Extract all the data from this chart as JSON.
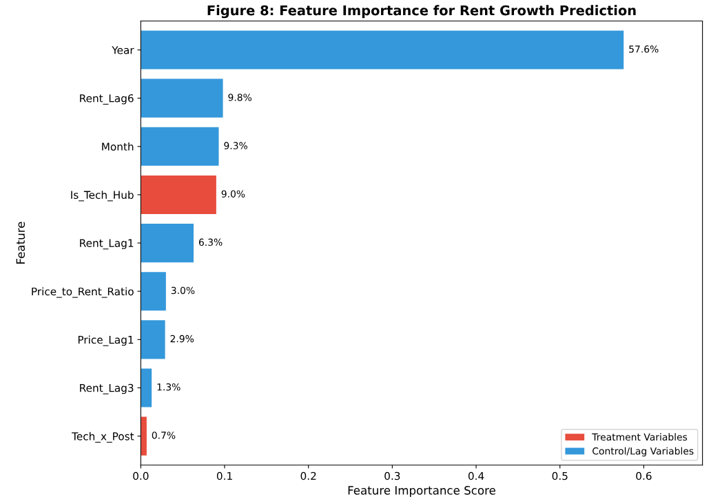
{
  "chart_data": {
    "type": "bar",
    "orientation": "horizontal",
    "title": "Figure 8: Feature Importance for Rent Growth Prediction",
    "xlabel": "Feature Importance Score",
    "ylabel": "Feature",
    "categories": [
      "Year",
      "Rent_Lag6",
      "Month",
      "Is_Tech_Hub",
      "Rent_Lag1",
      "Price_to_Rent_Ratio",
      "Price_Lag1",
      "Rent_Lag3",
      "Tech_x_Post"
    ],
    "series": [
      {
        "name": "Treatment Variables",
        "color": "#e74c3c",
        "values": [
          null,
          null,
          null,
          0.09,
          null,
          null,
          null,
          null,
          0.007
        ],
        "value_labels": [
          null,
          null,
          null,
          "9.0%",
          null,
          null,
          null,
          null,
          "0.7%"
        ]
      },
      {
        "name": "Control/Lag Variables",
        "color": "#3498db",
        "values": [
          0.576,
          0.098,
          0.093,
          null,
          0.063,
          0.03,
          0.029,
          0.013,
          null
        ],
        "value_labels": [
          "57.6%",
          "9.8%",
          "9.3%",
          null,
          "6.3%",
          "3.0%",
          "2.9%",
          "1.3%",
          null
        ]
      }
    ],
    "xlim": [
      0,
      0.67
    ],
    "xticks": [
      {
        "value": 0,
        "label": "0.0"
      },
      0.1,
      0.2,
      0.3,
      0.4,
      0.5,
      0.6
    ],
    "legend": "bottom right",
    "grid": false
  }
}
